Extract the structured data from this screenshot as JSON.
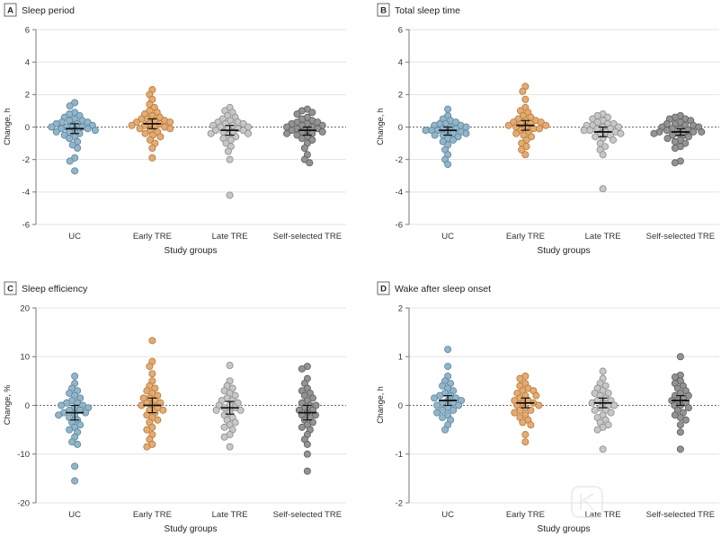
{
  "watermark": "医咖会",
  "colors": {
    "groups": [
      "#8fb6cb",
      "#e7ab6e",
      "#c7c7c7",
      "#939393"
    ],
    "group_outlines": [
      "#5f8297",
      "#b07840",
      "#8a8a8a",
      "#5c5c5c"
    ],
    "mean_marker": "#111111",
    "reference_line": "#666666",
    "grid": "#e3e3e3",
    "axis": "#777777"
  },
  "chart_data": [
    {
      "panel": "A",
      "type": "scatter",
      "title": "Sleep period",
      "xlabel": "Study groups",
      "ylabel": "Change, h",
      "ylim": [
        -6,
        6
      ],
      "yticks": [
        6,
        4,
        2,
        0,
        -2,
        -4,
        -6
      ],
      "grid": true,
      "reference_line_y": 0,
      "categories": [
        "UC",
        "Early TRE",
        "Late TRE",
        "Self-selected TRE"
      ],
      "groups": [
        {
          "values": [
            1.5,
            1.3,
            0.9,
            0.8,
            0.7,
            0.6,
            0.5,
            0.4,
            0.4,
            0.3,
            0.3,
            0.2,
            0.2,
            0.1,
            0.1,
            0.0,
            0.0,
            0.0,
            -0.1,
            -0.1,
            -0.2,
            -0.2,
            -0.3,
            -0.3,
            -0.4,
            -0.5,
            -0.6,
            -0.7,
            -0.9,
            -1.1,
            -1.3,
            -1.9,
            -2.1,
            -2.7
          ],
          "mean": -0.1,
          "error_bar": [
            -0.4,
            0.2
          ]
        },
        {
          "values": [
            2.3,
            2.0,
            1.7,
            1.4,
            1.2,
            1.0,
            0.9,
            0.8,
            0.7,
            0.6,
            0.5,
            0.5,
            0.4,
            0.4,
            0.3,
            0.3,
            0.2,
            0.2,
            0.1,
            0.1,
            0.0,
            0.0,
            -0.1,
            -0.1,
            -0.2,
            -0.3,
            -0.4,
            -0.5,
            -0.6,
            -0.8,
            -1.0,
            -1.3,
            -1.9
          ],
          "mean": 0.2,
          "error_bar": [
            -0.1,
            0.5
          ]
        },
        {
          "values": [
            1.2,
            1.0,
            0.9,
            0.7,
            0.6,
            0.5,
            0.4,
            0.3,
            0.3,
            0.2,
            0.2,
            0.1,
            0.1,
            0.0,
            0.0,
            -0.1,
            -0.1,
            -0.2,
            -0.2,
            -0.3,
            -0.3,
            -0.4,
            -0.4,
            -0.5,
            -0.6,
            -0.7,
            -0.8,
            -1.0,
            -1.2,
            -1.5,
            -2.0,
            -4.2
          ],
          "mean": -0.2,
          "error_bar": [
            -0.5,
            0.1
          ]
        },
        {
          "values": [
            1.1,
            1.0,
            0.9,
            0.8,
            0.6,
            0.5,
            0.4,
            0.3,
            0.3,
            0.2,
            0.2,
            0.1,
            0.1,
            0.0,
            0.0,
            -0.1,
            -0.1,
            -0.2,
            -0.2,
            -0.3,
            -0.3,
            -0.4,
            -0.4,
            -0.5,
            -0.6,
            -0.7,
            -0.8,
            -1.0,
            -1.3,
            -1.7,
            -2.0,
            -2.2
          ],
          "mean": -0.2,
          "error_bar": [
            -0.5,
            0.0
          ]
        }
      ]
    },
    {
      "panel": "B",
      "type": "scatter",
      "title": "Total sleep time",
      "xlabel": "Study groups",
      "ylabel": "Change, h",
      "ylim": [
        -6,
        6
      ],
      "yticks": [
        6,
        4,
        2,
        0,
        -2,
        -4,
        -6
      ],
      "grid": true,
      "reference_line_y": 0,
      "categories": [
        "UC",
        "Early TRE",
        "Late TRE",
        "Self-selected TRE"
      ],
      "groups": [
        {
          "values": [
            1.1,
            0.7,
            0.5,
            0.4,
            0.3,
            0.2,
            0.2,
            0.1,
            0.1,
            0.0,
            0.0,
            -0.1,
            -0.1,
            -0.2,
            -0.2,
            -0.2,
            -0.3,
            -0.3,
            -0.4,
            -0.4,
            -0.5,
            -0.5,
            -0.6,
            -0.7,
            -0.8,
            -0.9,
            -1.1,
            -1.4,
            -1.7,
            -2.0,
            -2.3
          ],
          "mean": -0.2,
          "error_bar": [
            -0.5,
            0.0
          ]
        },
        {
          "values": [
            2.5,
            2.2,
            1.7,
            1.2,
            1.0,
            0.9,
            0.7,
            0.6,
            0.5,
            0.4,
            0.4,
            0.3,
            0.3,
            0.2,
            0.2,
            0.1,
            0.1,
            0.0,
            0.0,
            -0.1,
            -0.1,
            -0.2,
            -0.3,
            -0.4,
            -0.5,
            -0.6,
            -0.8,
            -1.0,
            -1.2,
            -1.4,
            -1.7
          ],
          "mean": 0.1,
          "error_bar": [
            -0.2,
            0.4
          ]
        },
        {
          "values": [
            0.8,
            0.7,
            0.6,
            0.5,
            0.4,
            0.3,
            0.2,
            0.2,
            0.1,
            0.1,
            0.0,
            0.0,
            -0.1,
            -0.1,
            -0.2,
            -0.2,
            -0.3,
            -0.3,
            -0.4,
            -0.4,
            -0.5,
            -0.6,
            -0.7,
            -0.8,
            -1.0,
            -1.2,
            -1.4,
            -1.7,
            -3.8
          ],
          "mean": -0.3,
          "error_bar": [
            -0.6,
            0.0
          ]
        },
        {
          "values": [
            0.7,
            0.6,
            0.5,
            0.5,
            0.4,
            0.3,
            0.2,
            0.2,
            0.1,
            0.1,
            0.0,
            0.0,
            -0.1,
            -0.1,
            -0.2,
            -0.2,
            -0.3,
            -0.3,
            -0.3,
            -0.4,
            -0.4,
            -0.5,
            -0.5,
            -0.6,
            -0.7,
            -0.8,
            -0.9,
            -1.0,
            -1.2,
            -1.3,
            -2.1,
            -2.2
          ],
          "mean": -0.3,
          "error_bar": [
            -0.5,
            -0.1
          ]
        }
      ]
    },
    {
      "panel": "C",
      "type": "scatter",
      "title": "Sleep efficiency",
      "xlabel": "Study groups",
      "ylabel": "Change, %",
      "ylim": [
        -20,
        20
      ],
      "yticks": [
        20,
        10,
        0,
        -10,
        -20
      ],
      "grid": true,
      "reference_line_y": 0,
      "categories": [
        "UC",
        "Early TRE",
        "Late TRE",
        "Self-selected TRE"
      ],
      "groups": [
        {
          "values": [
            6.0,
            4.5,
            3.5,
            3.0,
            2.5,
            2.0,
            1.5,
            1.0,
            0.5,
            0.5,
            0.0,
            0.0,
            -0.5,
            -0.5,
            -1.0,
            -1.0,
            -1.5,
            -1.5,
            -2.0,
            -2.0,
            -2.5,
            -3.0,
            -3.5,
            -4.0,
            -4.5,
            -5.0,
            -5.5,
            -6.5,
            -7.5,
            -8.0,
            -12.5,
            -15.5
          ],
          "mean": -1.5,
          "error_bar": [
            -3.0,
            0.0
          ]
        },
        {
          "values": [
            13.3,
            9.0,
            8.0,
            6.5,
            5.0,
            4.0,
            3.5,
            3.0,
            2.5,
            2.0,
            1.5,
            1.5,
            1.0,
            0.5,
            0.5,
            0.0,
            0.0,
            -0.5,
            -1.0,
            -1.0,
            -1.5,
            -2.0,
            -2.5,
            -3.0,
            -3.5,
            -4.5,
            -5.0,
            -6.0,
            -7.0,
            -8.0,
            -8.5
          ],
          "mean": 0.0,
          "error_bar": [
            -1.5,
            1.5
          ]
        },
        {
          "values": [
            8.2,
            5.0,
            4.0,
            3.5,
            3.0,
            2.5,
            2.0,
            1.5,
            1.0,
            1.0,
            0.5,
            0.0,
            0.0,
            -0.5,
            -0.5,
            -1.0,
            -1.0,
            -1.5,
            -2.0,
            -2.5,
            -3.0,
            -3.5,
            -4.0,
            -4.5,
            -5.0,
            -6.0,
            -6.5,
            -8.5
          ],
          "mean": -0.5,
          "error_bar": [
            -1.8,
            0.8
          ]
        },
        {
          "values": [
            8.0,
            7.5,
            5.5,
            4.5,
            3.5,
            3.0,
            2.5,
            2.0,
            1.5,
            1.0,
            0.5,
            0.0,
            0.0,
            -0.5,
            -1.0,
            -1.0,
            -1.5,
            -2.0,
            -2.0,
            -2.5,
            -3.0,
            -3.5,
            -4.0,
            -4.5,
            -5.0,
            -6.0,
            -7.0,
            -8.0,
            -10.0,
            -13.5
          ],
          "mean": -1.5,
          "error_bar": [
            -3.0,
            0.0
          ]
        }
      ]
    },
    {
      "panel": "D",
      "type": "scatter",
      "title": "Wake after sleep onset",
      "xlabel": "Study groups",
      "ylabel": "Change, h",
      "ylim": [
        -2,
        2
      ],
      "yticks": [
        2,
        1,
        0,
        -1,
        -2
      ],
      "grid": true,
      "reference_line_y": 0,
      "categories": [
        "UC",
        "Early TRE",
        "Late TRE",
        "Self-selected TRE"
      ],
      "groups": [
        {
          "values": [
            1.15,
            0.8,
            0.6,
            0.5,
            0.45,
            0.4,
            0.35,
            0.3,
            0.25,
            0.2,
            0.2,
            0.15,
            0.15,
            0.1,
            0.1,
            0.05,
            0.05,
            0.0,
            0.0,
            -0.05,
            -0.1,
            -0.1,
            -0.15,
            -0.2,
            -0.25,
            -0.3,
            -0.4,
            -0.5
          ],
          "mean": 0.1,
          "error_bar": [
            0.0,
            0.2
          ]
        },
        {
          "values": [
            0.6,
            0.55,
            0.45,
            0.4,
            0.35,
            0.3,
            0.3,
            0.25,
            0.2,
            0.2,
            0.15,
            0.1,
            0.1,
            0.05,
            0.05,
            0.0,
            0.0,
            -0.05,
            -0.1,
            -0.1,
            -0.15,
            -0.2,
            -0.25,
            -0.3,
            -0.35,
            -0.4,
            -0.6,
            -0.75
          ],
          "mean": 0.05,
          "error_bar": [
            -0.05,
            0.15
          ]
        },
        {
          "values": [
            0.7,
            0.55,
            0.45,
            0.4,
            0.35,
            0.3,
            0.25,
            0.25,
            0.2,
            0.15,
            0.1,
            0.1,
            0.05,
            0.05,
            0.0,
            0.0,
            -0.05,
            -0.1,
            -0.1,
            -0.15,
            -0.2,
            -0.25,
            -0.3,
            -0.35,
            -0.4,
            -0.45,
            -0.5,
            -0.9
          ],
          "mean": 0.05,
          "error_bar": [
            -0.05,
            0.15
          ]
        },
        {
          "values": [
            1.0,
            0.62,
            0.58,
            0.5,
            0.45,
            0.4,
            0.35,
            0.3,
            0.25,
            0.2,
            0.2,
            0.15,
            0.1,
            0.1,
            0.05,
            0.0,
            0.0,
            -0.05,
            -0.1,
            -0.15,
            -0.2,
            -0.25,
            -0.3,
            -0.4,
            -0.55,
            -0.9
          ],
          "mean": 0.1,
          "error_bar": [
            0.0,
            0.2
          ]
        }
      ]
    }
  ]
}
